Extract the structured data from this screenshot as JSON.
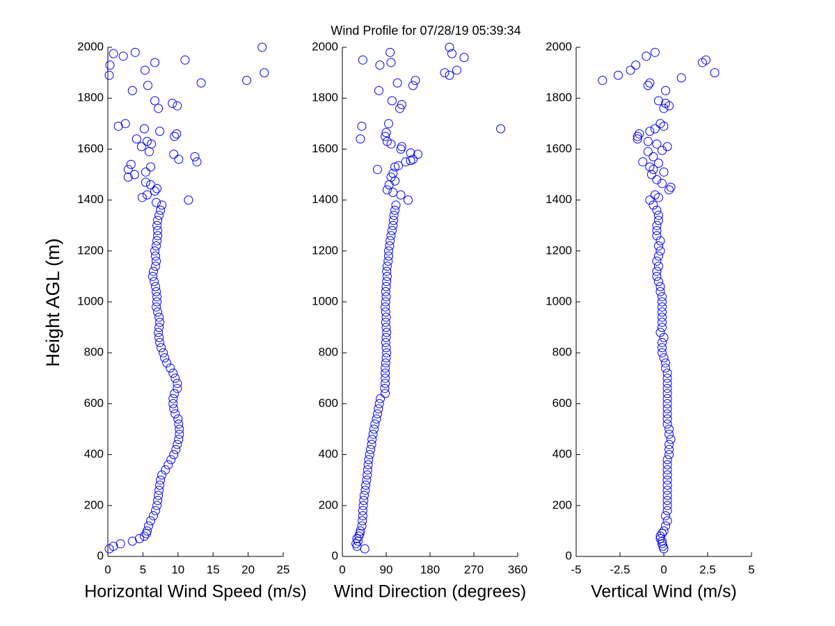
{
  "title": "Wind Profile for  07/28/19 05:39:34",
  "chart_data": [
    {
      "type": "scatter",
      "x_label": "Horizontal Wind Speed (m/s)",
      "y_label": "Height AGL (m)",
      "color": "#0000ff",
      "xlim": [
        0,
        25
      ],
      "xticks": [
        0,
        5,
        10,
        15,
        20,
        25
      ],
      "ylim": [
        0,
        2000
      ],
      "yticks": [
        0,
        200,
        400,
        600,
        800,
        1000,
        1200,
        1400,
        1600,
        1800,
        2000
      ],
      "x": [
        0.2,
        0.8,
        1.8,
        3.5,
        4.5,
        5.2,
        5.5,
        5.6,
        5.8,
        6.1,
        6.5,
        6.8,
        7.0,
        7.1,
        7.2,
        7.3,
        7.4,
        7.5,
        7.7,
        8.2,
        8.6,
        9.0,
        9.4,
        9.7,
        9.9,
        10.1,
        10.2,
        10.2,
        10.1,
        10.0,
        9.6,
        9.4,
        9.3,
        9.3,
        9.5,
        9.9,
        9.9,
        9.6,
        9.3,
        8.9,
        8.4,
        8.1,
        7.9,
        7.6,
        7.4,
        7.3,
        7.2,
        7.3,
        7.4,
        7.3,
        7.1,
        6.9,
        7.0,
        7.0,
        6.9,
        6.8,
        6.6,
        6.4,
        6.5,
        6.8,
        6.9,
        6.8,
        6.7,
        6.9,
        7.0,
        7.1,
        7.1,
        7.0,
        7.1,
        7.3,
        7.5,
        7.7,
        22,
        0.8,
        3.9,
        2.2,
        0.3,
        0.2,
        6.7,
        5.3,
        22.3,
        11.0,
        19.8,
        13.3,
        5.7,
        3.5,
        6.7,
        9.2,
        9.9,
        7.2,
        2.5,
        1.5,
        5.2,
        7.4,
        9.8,
        9.5,
        4.1,
        5.6,
        6.2,
        4.8,
        5.9,
        9.4,
        12.4,
        10.1,
        12.7,
        3.3,
        6.1,
        2.9,
        5.4,
        3.8,
        2.9,
        5.4,
        6.1,
        7.0,
        6.7,
        5.6,
        4.9,
        11.5,
        6.9
      ],
      "y": [
        30,
        40,
        50,
        60,
        70,
        80,
        90,
        100,
        120,
        140,
        160,
        180,
        200,
        220,
        240,
        260,
        280,
        300,
        320,
        340,
        360,
        380,
        400,
        420,
        440,
        460,
        480,
        500,
        520,
        540,
        560,
        580,
        600,
        620,
        640,
        660,
        680,
        700,
        720,
        740,
        760,
        780,
        800,
        820,
        840,
        860,
        880,
        900,
        920,
        940,
        960,
        980,
        1000,
        1020,
        1040,
        1060,
        1080,
        1100,
        1120,
        1140,
        1160,
        1180,
        1200,
        1220,
        1240,
        1260,
        1280,
        1300,
        1320,
        1340,
        1360,
        1380,
        2000,
        1975,
        1980,
        1965,
        1930,
        1890,
        1940,
        1910,
        1900,
        1950,
        1870,
        1860,
        1850,
        1830,
        1790,
        1780,
        1770,
        1760,
        1700,
        1690,
        1680,
        1670,
        1660,
        1650,
        1640,
        1630,
        1620,
        1610,
        1590,
        1580,
        1570,
        1560,
        1550,
        1540,
        1530,
        1520,
        1510,
        1500,
        1490,
        1470,
        1460,
        1445,
        1435,
        1420,
        1410,
        1400,
        1390
      ]
    },
    {
      "type": "scatter",
      "x_label": "Wind Direction (degrees)",
      "color": "#0000ff",
      "xlim": [
        0,
        360
      ],
      "xticks": [
        0,
        90,
        180,
        270,
        360
      ],
      "ylim": [
        0,
        2000
      ],
      "yticks": [
        0,
        200,
        400,
        600,
        800,
        1000,
        1200,
        1400,
        1600,
        1800,
        2000
      ],
      "x": [
        46,
        30,
        28,
        32,
        30,
        34,
        36,
        37,
        40,
        41,
        42,
        42,
        43,
        44,
        45,
        47,
        48,
        50,
        51,
        52,
        53,
        54,
        56,
        58,
        60,
        61,
        63,
        65,
        67,
        70,
        72,
        74,
        76,
        78,
        88,
        87,
        88,
        88,
        88,
        88,
        89,
        90,
        91,
        90,
        89,
        90,
        91,
        90,
        89,
        90,
        89,
        88,
        89,
        90,
        89,
        90,
        91,
        92,
        91,
        92,
        94,
        95,
        95,
        97,
        98,
        100,
        102,
        104,
        105,
        106,
        108,
        110,
        220,
        98,
        225,
        250,
        42,
        100,
        77,
        235,
        210,
        220,
        150,
        113,
        145,
        75,
        102,
        122,
        118,
        95,
        40,
        325,
        90,
        88,
        37,
        92,
        100,
        122,
        120,
        155,
        140,
        145,
        140,
        130,
        115,
        108,
        72,
        104,
        100,
        108,
        96,
        92,
        120,
        135,
        104
      ],
      "y": [
        30,
        40,
        50,
        60,
        70,
        80,
        90,
        100,
        120,
        140,
        160,
        180,
        200,
        220,
        240,
        260,
        280,
        300,
        320,
        340,
        360,
        380,
        400,
        420,
        440,
        460,
        480,
        500,
        520,
        540,
        560,
        580,
        600,
        620,
        640,
        660,
        680,
        700,
        720,
        740,
        760,
        780,
        800,
        820,
        840,
        860,
        880,
        900,
        920,
        940,
        960,
        980,
        1000,
        1020,
        1040,
        1060,
        1080,
        1100,
        1120,
        1140,
        1160,
        1180,
        1200,
        1220,
        1240,
        1260,
        1280,
        1300,
        1320,
        1340,
        1360,
        1380,
        2000,
        1980,
        1975,
        1960,
        1950,
        1940,
        1930,
        1910,
        1900,
        1890,
        1870,
        1860,
        1850,
        1830,
        1790,
        1775,
        1760,
        1700,
        1690,
        1680,
        1665,
        1650,
        1640,
        1630,
        1620,
        1610,
        1600,
        1580,
        1585,
        1560,
        1555,
        1550,
        1535,
        1530,
        1520,
        1505,
        1490,
        1475,
        1460,
        1440,
        1420,
        1400,
        1430
      ]
    },
    {
      "type": "scatter",
      "x_label": "Vertical Wind (m/s)",
      "color": "#0000ff",
      "xlim": [
        -5,
        5
      ],
      "xticks": [
        -5,
        -2.5,
        0,
        2.5,
        5
      ],
      "ylim": [
        0,
        2000
      ],
      "yticks": [
        0,
        200,
        400,
        600,
        800,
        1000,
        1200,
        1400,
        1600,
        1800,
        2000
      ],
      "x": [
        0.0,
        -0.05,
        -0.1,
        -0.1,
        -0.2,
        -0.2,
        -0.1,
        0.0,
        0.1,
        0.2,
        0.1,
        0.2,
        0.2,
        0.2,
        0.2,
        0.2,
        0.2,
        0.2,
        0.2,
        0.2,
        0.2,
        0.2,
        0.3,
        0.3,
        0.3,
        0.4,
        0.3,
        0.3,
        0.2,
        0.2,
        0.2,
        0.2,
        0.2,
        0.2,
        0.2,
        0.2,
        0.2,
        0.2,
        0.2,
        0.1,
        0.1,
        0.0,
        -0.1,
        -0.1,
        -0.1,
        0.0,
        -0.2,
        -0.1,
        -0.1,
        -0.1,
        -0.1,
        -0.1,
        -0.1,
        -0.1,
        -0.2,
        -0.2,
        -0.3,
        -0.4,
        -0.4,
        -0.3,
        -0.4,
        -0.3,
        -0.2,
        -0.3,
        -0.2,
        -0.4,
        -0.4,
        -0.4,
        -0.3,
        -0.3,
        -0.4,
        -0.6,
        -0.5,
        -1.0,
        -1.6,
        -1.9,
        -2.6,
        -3.5,
        2.2,
        2.4,
        2.9,
        1.0,
        -0.8,
        -0.9,
        0.1,
        -0.3,
        0.1,
        0.3,
        0.0,
        -0.2,
        0.0,
        -0.8,
        -0.5,
        -1.4,
        -1.5,
        -1.5,
        -0.9,
        -0.4,
        0.2,
        -0.1,
        -0.9,
        -0.6,
        -1.2,
        -0.3,
        -0.8,
        -0.6,
        0.0,
        -0.7,
        -0.4,
        -0.1,
        0.4,
        0.3,
        -0.5,
        -0.8,
        -0.3
      ],
      "y": [
        30,
        40,
        50,
        60,
        70,
        80,
        90,
        100,
        120,
        140,
        160,
        180,
        200,
        220,
        240,
        260,
        280,
        300,
        320,
        340,
        360,
        380,
        400,
        420,
        440,
        460,
        480,
        500,
        520,
        540,
        560,
        580,
        600,
        620,
        640,
        660,
        680,
        700,
        720,
        740,
        760,
        780,
        800,
        820,
        840,
        860,
        880,
        900,
        920,
        940,
        960,
        980,
        1000,
        1020,
        1040,
        1060,
        1080,
        1100,
        1120,
        1140,
        1160,
        1180,
        1200,
        1220,
        1240,
        1260,
        1280,
        1300,
        1320,
        1340,
        1360,
        1380,
        1980,
        1965,
        1930,
        1910,
        1890,
        1870,
        1940,
        1950,
        1900,
        1880,
        1860,
        1850,
        1830,
        1790,
        1780,
        1770,
        1760,
        1700,
        1690,
        1670,
        1680,
        1660,
        1650,
        1640,
        1630,
        1620,
        1610,
        1595,
        1590,
        1570,
        1550,
        1545,
        1530,
        1520,
        1510,
        1500,
        1480,
        1465,
        1450,
        1440,
        1420,
        1400,
        1410
      ]
    }
  ]
}
